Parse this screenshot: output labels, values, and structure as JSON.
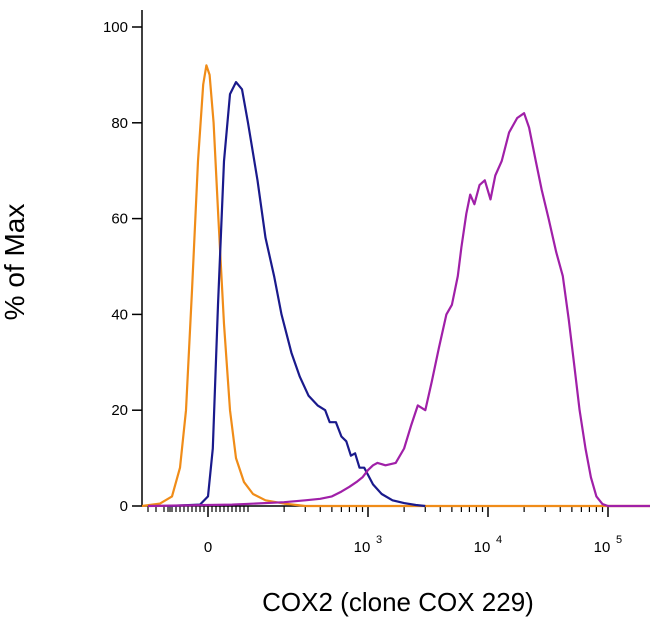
{
  "chart_data": {
    "type": "line",
    "xlabel": "COX2 (clone COX 229)",
    "ylabel": "% of Max",
    "ylim": [
      0,
      100
    ],
    "y_ticks": [
      "0",
      "20",
      "40",
      "60",
      "80",
      "100"
    ],
    "x_scale": "logicle",
    "x_ticks": [
      {
        "value": 0,
        "base": "0",
        "exp": ""
      },
      {
        "value": 1000,
        "base": "10",
        "exp": "3"
      },
      {
        "value": 10000,
        "base": "10",
        "exp": "4"
      },
      {
        "value": 100000,
        "base": "10",
        "exp": "5"
      }
    ],
    "grid": false,
    "series": [
      {
        "color": "#F08C18",
        "points": [
          [
            -180,
            0
          ],
          [
            -120,
            0.5
          ],
          [
            -90,
            2
          ],
          [
            -70,
            8
          ],
          [
            -55,
            20
          ],
          [
            -40,
            45
          ],
          [
            -25,
            72
          ],
          [
            -12,
            88
          ],
          [
            -4,
            92
          ],
          [
            4,
            90
          ],
          [
            14,
            80
          ],
          [
            26,
            60
          ],
          [
            40,
            38
          ],
          [
            55,
            20
          ],
          [
            70,
            10
          ],
          [
            90,
            5
          ],
          [
            110,
            2.5
          ],
          [
            140,
            1.2
          ],
          [
            200,
            0.5
          ],
          [
            300,
            0
          ],
          [
            100000,
            0
          ],
          [
            250000,
            0
          ]
        ]
      },
      {
        "color": "#1A1A8C",
        "points": [
          [
            -100,
            0
          ],
          [
            -20,
            0.3
          ],
          [
            0,
            2
          ],
          [
            12,
            12
          ],
          [
            25,
            42
          ],
          [
            40,
            72
          ],
          [
            55,
            86
          ],
          [
            70,
            88.5
          ],
          [
            85,
            87
          ],
          [
            100,
            80
          ],
          [
            120,
            68
          ],
          [
            140,
            56
          ],
          [
            165,
            48
          ],
          [
            190,
            40
          ],
          [
            230,
            32
          ],
          [
            270,
            27
          ],
          [
            320,
            23
          ],
          [
            380,
            21
          ],
          [
            440,
            20
          ],
          [
            480,
            17.5
          ],
          [
            540,
            17.5
          ],
          [
            600,
            14.5
          ],
          [
            660,
            13.5
          ],
          [
            720,
            10.5
          ],
          [
            780,
            11
          ],
          [
            850,
            8
          ],
          [
            930,
            8
          ],
          [
            1000,
            6.5
          ],
          [
            1100,
            4.5
          ],
          [
            1300,
            2.5
          ],
          [
            1600,
            1.2
          ],
          [
            2000,
            0.6
          ],
          [
            2500,
            0.2
          ],
          [
            3000,
            0
          ]
        ]
      },
      {
        "color": "#A020A8",
        "points": [
          [
            -150,
            0
          ],
          [
            60,
            0.3
          ],
          [
            200,
            0.8
          ],
          [
            300,
            1.2
          ],
          [
            400,
            1.5
          ],
          [
            500,
            2
          ],
          [
            600,
            3
          ],
          [
            700,
            4
          ],
          [
            800,
            5
          ],
          [
            900,
            6
          ],
          [
            1000,
            7.5
          ],
          [
            1100,
            8.5
          ],
          [
            1200,
            9
          ],
          [
            1400,
            8.5
          ],
          [
            1700,
            9
          ],
          [
            2000,
            12
          ],
          [
            2300,
            17
          ],
          [
            2600,
            21
          ],
          [
            3000,
            20
          ],
          [
            3400,
            26
          ],
          [
            3900,
            33
          ],
          [
            4500,
            40
          ],
          [
            5000,
            42
          ],
          [
            5600,
            48
          ],
          [
            6000,
            54
          ],
          [
            6600,
            61
          ],
          [
            7100,
            65
          ],
          [
            7700,
            63
          ],
          [
            8500,
            67
          ],
          [
            9400,
            68
          ],
          [
            10500,
            64
          ],
          [
            11500,
            69
          ],
          [
            13000,
            72
          ],
          [
            15000,
            78
          ],
          [
            17500,
            81
          ],
          [
            20000,
            82
          ],
          [
            22000,
            79
          ],
          [
            25000,
            72
          ],
          [
            28000,
            66
          ],
          [
            32000,
            60
          ],
          [
            37000,
            53
          ],
          [
            42000,
            48
          ],
          [
            47000,
            39
          ],
          [
            52000,
            30
          ],
          [
            58000,
            20
          ],
          [
            65000,
            12
          ],
          [
            72000,
            6
          ],
          [
            80000,
            2
          ],
          [
            90000,
            0.4
          ],
          [
            100000,
            0
          ],
          [
            250000,
            0
          ]
        ]
      }
    ]
  }
}
